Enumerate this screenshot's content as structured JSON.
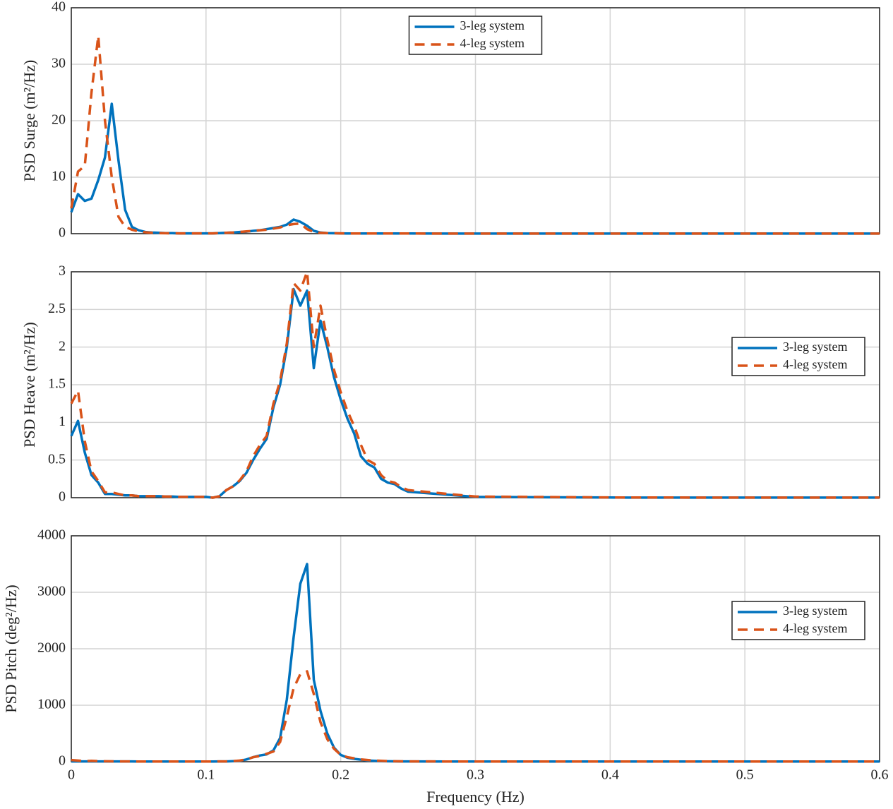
{
  "chart_data": [
    {
      "type": "line",
      "ylabel": "PSD Surge (m²/Hz)",
      "legend": "upper center",
      "grid": true,
      "xtick_labels": false,
      "x": [
        0,
        0.005,
        0.01,
        0.015,
        0.02,
        0.025,
        0.03,
        0.035,
        0.04,
        0.045,
        0.05,
        0.055,
        0.06,
        0.065,
        0.07,
        0.075,
        0.08,
        0.085,
        0.09,
        0.095,
        0.1,
        0.105,
        0.11,
        0.115,
        0.12,
        0.125,
        0.13,
        0.135,
        0.14,
        0.145,
        0.15,
        0.155,
        0.16,
        0.165,
        0.17,
        0.175,
        0.18,
        0.185,
        0.19,
        0.195,
        0.2,
        0.205,
        0.21,
        0.215,
        0.22,
        0.225,
        0.23,
        0.235,
        0.24,
        0.245,
        0.25,
        0.3,
        0.4,
        0.5,
        0.6
      ],
      "xlim": [
        0,
        0.6
      ],
      "xticks": [
        0,
        0.1,
        0.2,
        0.3,
        0.4,
        0.5,
        0.6
      ],
      "ylim": [
        0,
        40
      ],
      "yticks": [
        0,
        10,
        20,
        30,
        40
      ],
      "series": [
        {
          "name": "3-leg system",
          "color": "#0072bd",
          "dash": false,
          "values": [
            3.8,
            7,
            5.8,
            6.2,
            9.5,
            13.5,
            23,
            13,
            4.2,
            1.2,
            0.6,
            0.3,
            0.2,
            0.15,
            0.1,
            0.1,
            0.05,
            0.05,
            0.05,
            0.05,
            0.05,
            0.05,
            0.1,
            0.15,
            0.2,
            0.3,
            0.35,
            0.5,
            0.6,
            0.8,
            1.0,
            1.2,
            1.6,
            2.5,
            2.1,
            1.4,
            0.5,
            0.2,
            0.1,
            0.08,
            0.05,
            0.04,
            0.04,
            0.03,
            0.03,
            0.03,
            0.02,
            0.02,
            0.02,
            0.02,
            0.02,
            0.01,
            0.01,
            0.01,
            0.01
          ]
        },
        {
          "name": "4-leg system",
          "color": "#d95319",
          "dash": true,
          "values": [
            4.5,
            11,
            12,
            25,
            35,
            20,
            10,
            3,
            1.2,
            0.7,
            0.4,
            0.25,
            0.15,
            0.1,
            0.08,
            0.06,
            0.05,
            0.05,
            0.05,
            0.05,
            0.05,
            0.05,
            0.1,
            0.15,
            0.2,
            0.3,
            0.4,
            0.5,
            0.6,
            0.7,
            0.9,
            1.1,
            1.5,
            1.7,
            1.8,
            0.8,
            0.3,
            0.15,
            0.1,
            0.08,
            0.05,
            0.04,
            0.04,
            0.03,
            0.03,
            0.03,
            0.02,
            0.02,
            0.02,
            0.02,
            0.02,
            0.01,
            0.01,
            0.01,
            0.01
          ]
        }
      ]
    },
    {
      "type": "line",
      "ylabel": "PSD Heave (m²/Hz)",
      "legend": "right",
      "grid": true,
      "xtick_labels": false,
      "x": [
        0,
        0.005,
        0.01,
        0.015,
        0.02,
        0.025,
        0.03,
        0.035,
        0.04,
        0.045,
        0.05,
        0.055,
        0.06,
        0.065,
        0.07,
        0.075,
        0.08,
        0.085,
        0.09,
        0.095,
        0.1,
        0.105,
        0.11,
        0.115,
        0.12,
        0.125,
        0.13,
        0.135,
        0.14,
        0.145,
        0.15,
        0.155,
        0.16,
        0.165,
        0.17,
        0.175,
        0.18,
        0.185,
        0.19,
        0.195,
        0.2,
        0.205,
        0.21,
        0.215,
        0.22,
        0.225,
        0.23,
        0.235,
        0.24,
        0.245,
        0.25,
        0.3,
        0.4,
        0.5,
        0.6
      ],
      "xlim": [
        0,
        0.6
      ],
      "xticks": [
        0,
        0.1,
        0.2,
        0.3,
        0.4,
        0.5,
        0.6
      ],
      "ylim": [
        0,
        3
      ],
      "yticks": [
        0,
        0.5,
        1,
        1.5,
        2,
        2.5,
        3
      ],
      "series": [
        {
          "name": "3-leg system",
          "color": "#0072bd",
          "dash": false,
          "values": [
            0.82,
            1.02,
            0.6,
            0.3,
            0.2,
            0.05,
            0.05,
            0.04,
            0.03,
            0.03,
            0.02,
            0.02,
            0.02,
            0.02,
            0.015,
            0.015,
            0.01,
            0.01,
            0.01,
            0.01,
            0.01,
            0,
            0.02,
            0.1,
            0.15,
            0.22,
            0.33,
            0.5,
            0.65,
            0.78,
            1.2,
            1.5,
            2.0,
            2.77,
            2.55,
            2.75,
            1.72,
            2.35,
            2.0,
            1.6,
            1.3,
            1.05,
            0.85,
            0.55,
            0.45,
            0.4,
            0.25,
            0.2,
            0.18,
            0.12,
            0.08,
            0.01,
            0.002,
            0.001,
            0.001
          ]
        },
        {
          "name": "4-leg system",
          "color": "#d95319",
          "dash": true,
          "values": [
            1.25,
            1.42,
            0.75,
            0.35,
            0.22,
            0.07,
            0.07,
            0.05,
            0.03,
            0.03,
            0.02,
            0.02,
            0.02,
            0.02,
            0.015,
            0.015,
            0.01,
            0.01,
            0.01,
            0.01,
            0.01,
            0,
            0.02,
            0.1,
            0.15,
            0.23,
            0.35,
            0.55,
            0.7,
            0.82,
            1.25,
            1.55,
            2.05,
            2.85,
            2.75,
            3.0,
            2.0,
            2.55,
            2.1,
            1.7,
            1.4,
            1.15,
            0.95,
            0.7,
            0.5,
            0.45,
            0.3,
            0.22,
            0.2,
            0.14,
            0.1,
            0.015,
            0.003,
            0.001,
            0.001
          ]
        }
      ]
    },
    {
      "type": "line",
      "ylabel": "PSD Pitch (deg²/Hz)",
      "xlabel": "Frequency (Hz)",
      "legend": "right",
      "grid": true,
      "xtick_labels": true,
      "x": [
        0,
        0.005,
        0.01,
        0.015,
        0.02,
        0.025,
        0.03,
        0.035,
        0.04,
        0.045,
        0.05,
        0.055,
        0.06,
        0.065,
        0.07,
        0.075,
        0.08,
        0.085,
        0.09,
        0.095,
        0.1,
        0.105,
        0.11,
        0.115,
        0.12,
        0.125,
        0.13,
        0.135,
        0.14,
        0.145,
        0.15,
        0.155,
        0.16,
        0.165,
        0.17,
        0.175,
        0.18,
        0.185,
        0.19,
        0.195,
        0.2,
        0.205,
        0.21,
        0.215,
        0.22,
        0.225,
        0.23,
        0.235,
        0.24,
        0.245,
        0.25,
        0.3,
        0.4,
        0.5,
        0.6
      ],
      "xlim": [
        0,
        0.6
      ],
      "xticks": [
        0,
        0.1,
        0.2,
        0.3,
        0.4,
        0.5,
        0.6
      ],
      "ylim": [
        0,
        4000
      ],
      "yticks": [
        0,
        1000,
        2000,
        3000,
        4000
      ],
      "series": [
        {
          "name": "3-leg system",
          "color": "#0072bd",
          "dash": false,
          "values": [
            5,
            5,
            5,
            5,
            5,
            5,
            5,
            5,
            5,
            5,
            3,
            3,
            3,
            3,
            3,
            3,
            3,
            3,
            3,
            3,
            3,
            3,
            5,
            5,
            10,
            15,
            40,
            80,
            110,
            130,
            200,
            420,
            1100,
            2200,
            3150,
            3500,
            1450,
            900,
            500,
            250,
            120,
            70,
            50,
            35,
            20,
            15,
            10,
            8,
            6,
            5,
            5,
            3,
            2,
            2,
            2
          ]
        },
        {
          "name": "4-leg system",
          "color": "#d95319",
          "dash": true,
          "values": [
            30,
            20,
            10,
            15,
            10,
            8,
            6,
            5,
            5,
            5,
            3,
            3,
            3,
            3,
            3,
            3,
            3,
            3,
            3,
            3,
            3,
            3,
            5,
            5,
            10,
            20,
            40,
            80,
            100,
            140,
            180,
            350,
            800,
            1300,
            1550,
            1600,
            1200,
            700,
            400,
            230,
            120,
            80,
            60,
            40,
            30,
            20,
            15,
            10,
            8,
            6,
            5,
            3,
            2,
            2,
            2
          ]
        }
      ]
    }
  ]
}
